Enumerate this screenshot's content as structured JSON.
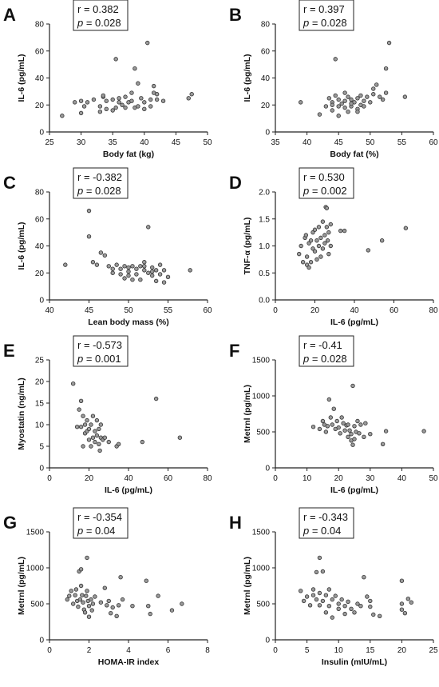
{
  "chart_data": [
    {
      "panel": "A",
      "type": "scatter",
      "r_text": "r = 0.382",
      "p_label": "p",
      "p_value": " = 0.028",
      "xlabel": "Body fat (kg)",
      "ylabel": "IL-6 (pg/mL)",
      "xlim": [
        25,
        50
      ],
      "ylim": [
        0,
        80
      ],
      "xticks": [
        25,
        30,
        35,
        40,
        45,
        50
      ],
      "yticks": [
        0,
        20,
        40,
        60,
        80
      ],
      "points": [
        [
          27,
          12
        ],
        [
          29,
          22
        ],
        [
          30,
          14
        ],
        [
          30,
          23
        ],
        [
          30.5,
          19
        ],
        [
          31,
          22
        ],
        [
          32,
          24
        ],
        [
          33,
          15
        ],
        [
          33,
          19
        ],
        [
          33.5,
          26
        ],
        [
          33.5,
          27
        ],
        [
          34,
          17
        ],
        [
          34,
          23
        ],
        [
          35,
          16
        ],
        [
          35,
          24
        ],
        [
          35.5,
          18
        ],
        [
          35.5,
          54
        ],
        [
          36,
          22
        ],
        [
          36,
          25
        ],
        [
          36.5,
          20
        ],
        [
          37,
          18
        ],
        [
          37,
          26
        ],
        [
          37.5,
          22
        ],
        [
          38,
          23
        ],
        [
          38,
          29
        ],
        [
          38.5,
          47
        ],
        [
          38.5,
          18
        ],
        [
          39,
          36
        ],
        [
          39,
          19
        ],
        [
          39.5,
          25
        ],
        [
          40,
          22
        ],
        [
          40,
          17
        ],
        [
          40.5,
          66
        ],
        [
          41,
          24
        ],
        [
          41,
          19
        ],
        [
          41.5,
          29
        ],
        [
          41.5,
          34
        ],
        [
          42,
          24
        ],
        [
          42,
          28
        ],
        [
          43,
          23
        ],
        [
          47,
          25
        ],
        [
          47.5,
          28
        ]
      ]
    },
    {
      "panel": "B",
      "type": "scatter",
      "r_text": "r = 0.397",
      "p_label": "p",
      "p_value": " = 0.028",
      "xlabel": "Body fat (%)",
      "ylabel": "IL-6 (pg/mL)",
      "xlim": [
        35,
        60
      ],
      "ylim": [
        0,
        80
      ],
      "xticks": [
        35,
        40,
        45,
        50,
        55,
        60
      ],
      "yticks": [
        0,
        20,
        40,
        60,
        80
      ],
      "points": [
        [
          39,
          22
        ],
        [
          42,
          13
        ],
        [
          43,
          19
        ],
        [
          43.5,
          25
        ],
        [
          44,
          16
        ],
        [
          44,
          22
        ],
        [
          44.5,
          27
        ],
        [
          44.5,
          54
        ],
        [
          45,
          19
        ],
        [
          45,
          24
        ],
        [
          45.5,
          21
        ],
        [
          46,
          18
        ],
        [
          46,
          23
        ],
        [
          46,
          29
        ],
        [
          46.5,
          15
        ],
        [
          46.5,
          26
        ],
        [
          47,
          19
        ],
        [
          47,
          24
        ],
        [
          47.5,
          22
        ],
        [
          48,
          17
        ],
        [
          48,
          25
        ],
        [
          48.5,
          20
        ],
        [
          48.5,
          27
        ],
        [
          49,
          19
        ],
        [
          49,
          23
        ],
        [
          49.5,
          26
        ],
        [
          50,
          22
        ],
        [
          50.5,
          28
        ],
        [
          50.5,
          32
        ],
        [
          51,
          35
        ],
        [
          51.5,
          26
        ],
        [
          52,
          24
        ],
        [
          52.5,
          47
        ],
        [
          52.5,
          29
        ],
        [
          53,
          66
        ],
        [
          55.5,
          26
        ],
        [
          48,
          15
        ],
        [
          45,
          12
        ],
        [
          47,
          21
        ],
        [
          44,
          20
        ]
      ]
    },
    {
      "panel": "C",
      "type": "scatter",
      "r_text": "r = -0.382",
      "p_label": "p",
      "p_value": " = 0.028",
      "xlabel": "Lean body mass (%)",
      "ylabel": "IL-6 (pg/mL)",
      "xlim": [
        40,
        60
      ],
      "ylim": [
        0,
        80
      ],
      "xticks": [
        40,
        45,
        50,
        55,
        60
      ],
      "yticks": [
        0,
        20,
        40,
        60,
        80
      ],
      "points": [
        [
          42,
          26
        ],
        [
          45,
          66
        ],
        [
          45,
          47
        ],
        [
          45.5,
          28
        ],
        [
          46,
          26
        ],
        [
          46.5,
          35
        ],
        [
          47,
          33
        ],
        [
          47.5,
          25
        ],
        [
          48,
          20
        ],
        [
          48,
          23
        ],
        [
          48.5,
          26
        ],
        [
          49,
          19
        ],
        [
          49,
          23
        ],
        [
          49.5,
          16
        ],
        [
          49.5,
          25
        ],
        [
          50,
          21
        ],
        [
          50,
          18
        ],
        [
          50.5,
          25
        ],
        [
          50.5,
          15
        ],
        [
          51,
          23
        ],
        [
          51,
          19
        ],
        [
          51.5,
          25
        ],
        [
          51.5,
          15
        ],
        [
          52,
          22
        ],
        [
          52,
          28
        ],
        [
          52.5,
          20
        ],
        [
          52.5,
          54
        ],
        [
          53,
          24
        ],
        [
          53,
          18
        ],
        [
          53.5,
          22
        ],
        [
          53.5,
          14
        ],
        [
          54,
          26
        ],
        [
          54,
          19
        ],
        [
          54.5,
          22
        ],
        [
          54.5,
          13
        ],
        [
          55,
          17
        ],
        [
          57.8,
          22
        ],
        [
          52,
          25
        ],
        [
          50,
          24
        ],
        [
          53,
          21
        ]
      ]
    },
    {
      "panel": "D",
      "type": "scatter",
      "r_text": "r = 0.530",
      "p_label": "p",
      "p_value": " = 0.002",
      "xlabel": "IL-6 (pg/mL)",
      "ylabel": "TNF-α (pg/mL)",
      "xlim": [
        0,
        80
      ],
      "ylim": [
        0.0,
        2.0
      ],
      "xticks": [
        0,
        20,
        40,
        60,
        80
      ],
      "yticks": [
        "0.0",
        "0.5",
        "1.0",
        "1.5",
        "2.0"
      ],
      "points": [
        [
          12,
          0.85
        ],
        [
          13,
          1.0
        ],
        [
          14,
          0.7
        ],
        [
          15,
          1.15
        ],
        [
          15.5,
          1.2
        ],
        [
          16,
          0.65
        ],
        [
          16,
          0.8
        ],
        [
          17,
          0.6
        ],
        [
          17,
          1.05
        ],
        [
          18,
          0.7
        ],
        [
          18,
          1.1
        ],
        [
          19,
          0.95
        ],
        [
          19,
          1.25
        ],
        [
          20,
          1.3
        ],
        [
          20,
          0.9
        ],
        [
          21,
          1.1
        ],
        [
          21,
          0.75
        ],
        [
          22,
          1.0
        ],
        [
          22,
          1.35
        ],
        [
          23,
          0.8
        ],
        [
          23,
          1.15
        ],
        [
          24,
          1.45
        ],
        [
          24,
          0.95
        ],
        [
          25,
          1.2
        ],
        [
          25,
          1.05
        ],
        [
          25.5,
          1.72
        ],
        [
          26,
          1.7
        ],
        [
          26,
          1.35
        ],
        [
          26.5,
          1.1
        ],
        [
          27,
          0.85
        ],
        [
          27,
          1.25
        ],
        [
          28,
          1.4
        ],
        [
          28,
          1.0
        ],
        [
          33,
          1.28
        ],
        [
          35,
          1.28
        ],
        [
          47,
          0.92
        ],
        [
          54,
          1.1
        ],
        [
          66,
          1.33
        ]
      ]
    },
    {
      "panel": "E",
      "type": "scatter",
      "r_text": "r = -0.573",
      "p_label": "p",
      "p_value": " = 0.001",
      "xlabel": "IL-6 (pg/mL)",
      "ylabel": "Myostatin (ng/mL)",
      "xlim": [
        0,
        80
      ],
      "ylim": [
        0,
        25
      ],
      "xticks": [
        0,
        20,
        40,
        60,
        80
      ],
      "yticks": [
        0,
        5,
        10,
        15,
        20,
        25
      ],
      "points": [
        [
          12,
          19.5
        ],
        [
          14,
          9.5
        ],
        [
          15,
          13.5
        ],
        [
          16,
          15.5
        ],
        [
          16,
          9.5
        ],
        [
          17,
          5
        ],
        [
          17,
          12
        ],
        [
          18,
          10
        ],
        [
          18,
          8
        ],
        [
          19,
          8.5
        ],
        [
          19,
          11
        ],
        [
          20,
          9
        ],
        [
          20,
          6.5
        ],
        [
          21,
          10
        ],
        [
          21,
          5
        ],
        [
          22,
          7
        ],
        [
          22,
          12
        ],
        [
          23,
          8.5
        ],
        [
          23,
          6
        ],
        [
          24,
          11
        ],
        [
          24,
          7.5
        ],
        [
          25,
          9
        ],
        [
          25,
          5.5
        ],
        [
          25.5,
          4
        ],
        [
          26,
          7
        ],
        [
          26,
          10
        ],
        [
          27,
          6.5
        ],
        [
          28,
          7
        ],
        [
          30,
          6
        ],
        [
          34,
          5
        ],
        [
          35,
          5.5
        ],
        [
          47,
          6
        ],
        [
          54,
          16
        ],
        [
          66,
          7
        ]
      ]
    },
    {
      "panel": "F",
      "type": "scatter",
      "r_text": "r = -0.41",
      "p_label": "p",
      "p_value": " = 0.028",
      "xlabel": "IL-6 (pg/mL)",
      "ylabel": "Metrnl (pg/mL)",
      "xlim": [
        0,
        50
      ],
      "ylim": [
        0,
        1500
      ],
      "xticks": [
        0,
        10,
        20,
        30,
        40,
        50
      ],
      "yticks": [
        0,
        500,
        1000,
        1500
      ],
      "points": [
        [
          12,
          570
        ],
        [
          14,
          540
        ],
        [
          15,
          650
        ],
        [
          15.5,
          600
        ],
        [
          16,
          500
        ],
        [
          16.5,
          580
        ],
        [
          17,
          950
        ],
        [
          17.5,
          700
        ],
        [
          18,
          600
        ],
        [
          18.5,
          820
        ],
        [
          19,
          540
        ],
        [
          19.5,
          650
        ],
        [
          20,
          560
        ],
        [
          20.5,
          480
        ],
        [
          21,
          700
        ],
        [
          21.5,
          620
        ],
        [
          22,
          520
        ],
        [
          22.5,
          590
        ],
        [
          23,
          430
        ],
        [
          23,
          600
        ],
        [
          23.5,
          520
        ],
        [
          24,
          380
        ],
        [
          24,
          470
        ],
        [
          24.5,
          320
        ],
        [
          24.5,
          1140
        ],
        [
          25,
          400
        ],
        [
          25,
          580
        ],
        [
          25.5,
          500
        ],
        [
          26,
          650
        ],
        [
          26.5,
          480
        ],
        [
          27,
          600
        ],
        [
          28,
          430
        ],
        [
          28.5,
          620
        ],
        [
          30,
          470
        ],
        [
          34,
          330
        ],
        [
          35,
          510
        ],
        [
          47,
          510
        ]
      ]
    },
    {
      "panel": "G",
      "type": "scatter",
      "r_text": "r = -0.354",
      "p_label": "p",
      "p_value": " = 0.04",
      "xlabel": "HOMA-IR index",
      "ylabel": "Metrnl (pg/mL)",
      "xlim": [
        0,
        8
      ],
      "ylim": [
        0,
        1500
      ],
      "xticks": [
        0,
        2,
        4,
        6,
        8
      ],
      "yticks": [
        0,
        500,
        1000,
        1500
      ],
      "points": [
        [
          0.9,
          560
        ],
        [
          1.0,
          610
        ],
        [
          1.1,
          680
        ],
        [
          1.2,
          500
        ],
        [
          1.3,
          620
        ],
        [
          1.35,
          700
        ],
        [
          1.4,
          540
        ],
        [
          1.45,
          460
        ],
        [
          1.5,
          950
        ],
        [
          1.55,
          560
        ],
        [
          1.6,
          980
        ],
        [
          1.6,
          750
        ],
        [
          1.65,
          620
        ],
        [
          1.7,
          520
        ],
        [
          1.75,
          420
        ],
        [
          1.8,
          380
        ],
        [
          1.85,
          610
        ],
        [
          1.9,
          680
        ],
        [
          1.9,
          1140
        ],
        [
          1.95,
          540
        ],
        [
          2.0,
          470
        ],
        [
          2.0,
          320
        ],
        [
          2.1,
          560
        ],
        [
          2.15,
          410
        ],
        [
          2.2,
          500
        ],
        [
          2.3,
          600
        ],
        [
          2.6,
          520
        ],
        [
          2.8,
          720
        ],
        [
          2.9,
          480
        ],
        [
          3.0,
          540
        ],
        [
          3.1,
          370
        ],
        [
          3.2,
          450
        ],
        [
          3.4,
          330
        ],
        [
          3.5,
          480
        ],
        [
          3.6,
          870
        ],
        [
          3.7,
          560
        ],
        [
          4.2,
          470
        ],
        [
          4.9,
          820
        ],
        [
          5.0,
          470
        ],
        [
          5.1,
          360
        ],
        [
          5.5,
          610
        ],
        [
          6.2,
          410
        ],
        [
          6.7,
          500
        ]
      ]
    },
    {
      "panel": "H",
      "type": "scatter",
      "r_text": "r = -0.343",
      "p_label": "p",
      "p_value": " = 0.04",
      "xlabel": "Insulin (mIU/mL)",
      "ylabel": "Metrnl (pg/mL)",
      "xlim": [
        0,
        25
      ],
      "ylim": [
        0,
        1500
      ],
      "xticks": [
        0,
        5,
        10,
        15,
        20,
        25
      ],
      "yticks": [
        0,
        500,
        1000,
        1500
      ],
      "points": [
        [
          4,
          680
        ],
        [
          4.5,
          540
        ],
        [
          5,
          600
        ],
        [
          5.5,
          480
        ],
        [
          6,
          700
        ],
        [
          6,
          620
        ],
        [
          6.5,
          560
        ],
        [
          6.5,
          940
        ],
        [
          7,
          650
        ],
        [
          7,
          480
        ],
        [
          7,
          1140
        ],
        [
          7.5,
          540
        ],
        [
          7.5,
          950
        ],
        [
          8,
          380
        ],
        [
          8,
          620
        ],
        [
          8.5,
          700
        ],
        [
          8.5,
          470
        ],
        [
          9,
          560
        ],
        [
          9,
          310
        ],
        [
          9.5,
          610
        ],
        [
          10,
          500
        ],
        [
          10,
          430
        ],
        [
          10.5,
          560
        ],
        [
          11,
          470
        ],
        [
          11,
          360
        ],
        [
          11.5,
          530
        ],
        [
          12,
          430
        ],
        [
          12.5,
          380
        ],
        [
          13,
          500
        ],
        [
          13.5,
          470
        ],
        [
          14,
          870
        ],
        [
          14.5,
          600
        ],
        [
          15,
          540
        ],
        [
          15,
          460
        ],
        [
          15.5,
          350
        ],
        [
          16.5,
          330
        ],
        [
          20,
          500
        ],
        [
          20,
          420
        ],
        [
          20,
          820
        ],
        [
          20.5,
          370
        ],
        [
          21,
          570
        ],
        [
          21.5,
          520
        ]
      ]
    }
  ]
}
